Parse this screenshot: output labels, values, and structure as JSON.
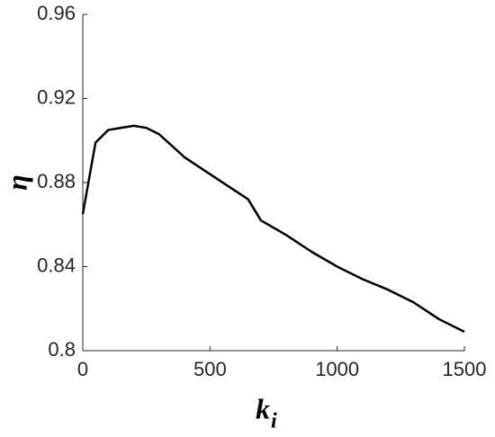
{
  "chart_data": {
    "type": "line",
    "xlabel": "k",
    "xlabel_subscript": "i",
    "ylabel": "η",
    "x": [
      0,
      50,
      100,
      200,
      250,
      300,
      400,
      500,
      600,
      650,
      700,
      800,
      900,
      1000,
      1100,
      1200,
      1300,
      1350,
      1400,
      1500
    ],
    "series": [
      {
        "color": "#000000",
        "values": [
          0.865,
          0.899,
          0.905,
          0.907,
          0.906,
          0.903,
          0.892,
          0.884,
          0.876,
          0.872,
          0.862,
          0.855,
          0.847,
          0.84,
          0.834,
          0.829,
          0.823,
          0.819,
          0.815,
          0.809
        ]
      }
    ],
    "xlim": [
      0,
      1500
    ],
    "xticks": [
      0,
      500,
      1000,
      1500
    ],
    "ylim": [
      0.8,
      0.96
    ],
    "yticks": [
      0.8,
      0.84,
      0.88,
      0.92,
      0.96
    ]
  }
}
